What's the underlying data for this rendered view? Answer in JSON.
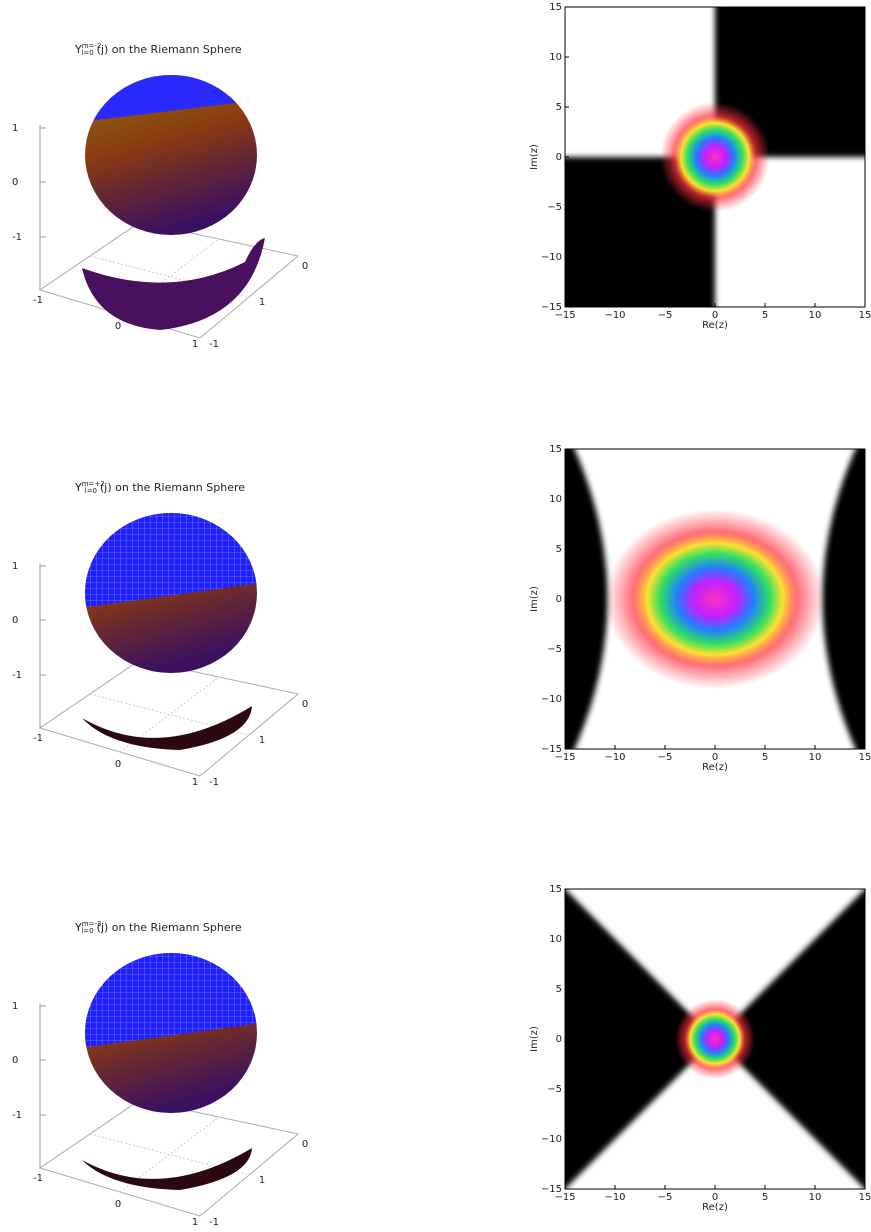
{
  "panels": [
    {
      "sphere": {
        "title": {
          "base": "Y",
          "sup": "m=-2",
          "sub": "l=0",
          "rest": "(j)  on the Riemann Sphere"
        },
        "zticks": [
          "1",
          "0",
          "-1"
        ],
        "floor_ticks": [
          "-1",
          "0",
          "1",
          "-1",
          "0",
          "1"
        ]
      },
      "plane": {
        "xticks": [
          "−15",
          "−10",
          "−5",
          "0",
          "5",
          "10",
          "15"
        ],
        "yticks": [
          "15",
          "10",
          "5",
          "0",
          "−5",
          "−10",
          "−15"
        ],
        "xlabel": "Re(z)",
        "ylabel": "Im(z)"
      }
    },
    {
      "sphere": {
        "title": {
          "base": "Y",
          "sup": "m=+2",
          "sub": "l=0",
          "rest": "(j)  on the Riemann Sphere"
        },
        "zticks": [
          "1",
          "0",
          "-1"
        ],
        "floor_ticks": [
          "-1",
          "0",
          "1",
          "-1",
          "0",
          "1"
        ]
      },
      "plane": {
        "xticks": [
          "−15",
          "−10",
          "−5",
          "0",
          "5",
          "10",
          "15"
        ],
        "yticks": [
          "15",
          "10",
          "5",
          "0",
          "−5",
          "−10",
          "−15"
        ],
        "xlabel": "Re(z)",
        "ylabel": "Im(z)"
      }
    },
    {
      "sphere": {
        "title": {
          "base": "Y",
          "sup": "m=-3",
          "sub": "l=0",
          "rest": "(j)  on the Riemann Sphere"
        },
        "zticks": [
          "1",
          "0",
          "-1"
        ],
        "floor_ticks": [
          "-1",
          "0",
          "1",
          "-1",
          "0",
          "1"
        ]
      },
      "plane": {
        "xticks": [
          "−15",
          "−10",
          "−5",
          "0",
          "5",
          "10",
          "15"
        ],
        "yticks": [
          "15",
          "10",
          "5",
          "0",
          "−5",
          "−10",
          "−15"
        ],
        "xlabel": "Re(z)",
        "ylabel": "Im(z)"
      }
    }
  ]
}
